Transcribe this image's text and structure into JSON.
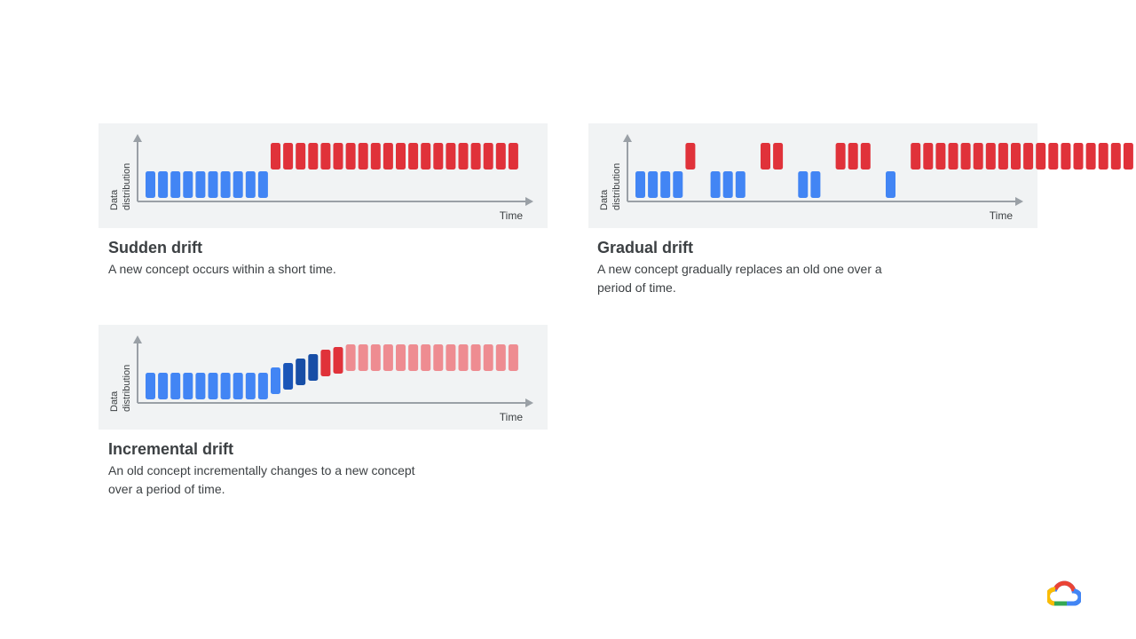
{
  "colors": {
    "blue": "#4285f4",
    "dark_blue": "#1a55b8",
    "darker_blue": "#174ea6",
    "red": "#e0323a",
    "light_red": "#ee8c91",
    "panel_bg": "#f1f3f4",
    "axis": "#9aa0a6"
  },
  "cards": [
    {
      "title": "Sudden drift",
      "description": "A new concept occurs within a short time.",
      "ylabel_line1": "Data",
      "ylabel_line2": "distribution",
      "xlabel": "Time",
      "bars": [
        "low",
        "low",
        "low",
        "low",
        "low",
        "low",
        "low",
        "low",
        "low",
        "low",
        "high",
        "high",
        "high",
        "high",
        "high",
        "high",
        "high",
        "high",
        "high",
        "high",
        "high",
        "high",
        "high",
        "high",
        "high",
        "high",
        "high",
        "high",
        "high",
        "high"
      ]
    },
    {
      "title": "Gradual drift",
      "description": "A new concept gradually replaces an old one over a period of time.",
      "ylabel_line1": "Data",
      "ylabel_line2": "distribution",
      "xlabel": "Time",
      "bars": [
        "low",
        "low",
        "low",
        "low",
        "high",
        "empty",
        "low",
        "low",
        "low",
        "empty",
        "high",
        "high",
        "empty",
        "low",
        "low",
        "empty",
        "high",
        "high",
        "high",
        "empty",
        "low",
        "empty",
        "high",
        "high",
        "high",
        "high",
        "high",
        "high",
        "high",
        "high",
        "high",
        "high",
        "high",
        "high",
        "high",
        "high",
        "high",
        "high",
        "high",
        "high"
      ]
    },
    {
      "title": "Incremental drift",
      "description": "An old concept incrementally changes to a new concept over a period of time.",
      "ylabel_line1": "Data",
      "ylabel_line2": "distribution",
      "xlabel": "Time",
      "bars": [
        "b0",
        "b0",
        "b0",
        "b0",
        "b0",
        "b0",
        "b0",
        "b0",
        "b0",
        "b0",
        "b1",
        "b2",
        "b3",
        "b4",
        "r1",
        "r2",
        "r3",
        "r3",
        "r3",
        "r3",
        "r3",
        "r3",
        "r3",
        "r3",
        "r3",
        "r3",
        "r3",
        "r3",
        "r3",
        "r3"
      ]
    }
  ],
  "logo": "google-cloud-logo"
}
